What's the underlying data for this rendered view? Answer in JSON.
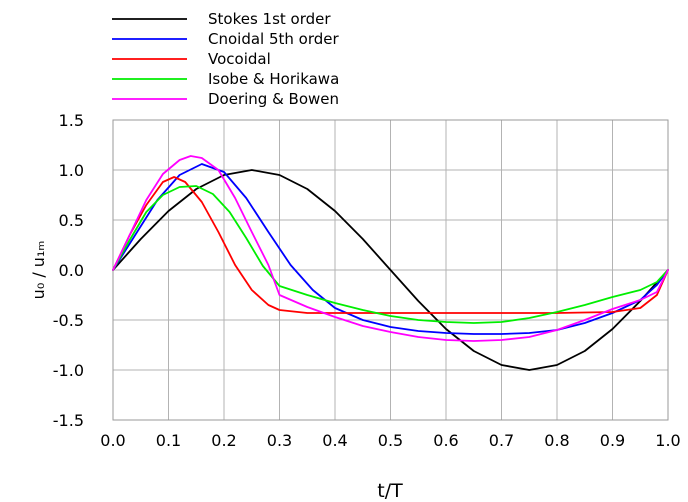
{
  "chart_data": {
    "type": "line",
    "title": "",
    "xlabel": "t/T",
    "ylabel": "u₀ / u₁ₘ",
    "xlim": [
      0.0,
      1.0
    ],
    "ylim": [
      -1.5,
      1.5
    ],
    "x_ticks": [
      "0.0",
      "0.1",
      "0.2",
      "0.3",
      "0.4",
      "0.5",
      "0.6",
      "0.7",
      "0.8",
      "0.9",
      "1.0"
    ],
    "y_ticks": [
      "1.5",
      "1.0",
      "0.5",
      "0.0",
      "-0.5",
      "-1.0",
      "-1.5"
    ],
    "grid": true,
    "legend_position": "top-left-outside",
    "series": [
      {
        "name": "Stokes 1st order",
        "color": "#000000",
        "points": [
          [
            0.0,
            0.0
          ],
          [
            0.05,
            0.31
          ],
          [
            0.1,
            0.59
          ],
          [
            0.15,
            0.81
          ],
          [
            0.2,
            0.95
          ],
          [
            0.25,
            1.0
          ],
          [
            0.3,
            0.95
          ],
          [
            0.35,
            0.81
          ],
          [
            0.4,
            0.59
          ],
          [
            0.45,
            0.31
          ],
          [
            0.5,
            0.0
          ],
          [
            0.55,
            -0.31
          ],
          [
            0.6,
            -0.59
          ],
          [
            0.65,
            -0.81
          ],
          [
            0.7,
            -0.95
          ],
          [
            0.75,
            -1.0
          ],
          [
            0.8,
            -0.95
          ],
          [
            0.85,
            -0.81
          ],
          [
            0.9,
            -0.59
          ],
          [
            0.95,
            -0.31
          ],
          [
            1.0,
            0.0
          ]
        ]
      },
      {
        "name": "Cnoidal 5th order",
        "color": "#0000ff",
        "points": [
          [
            0.0,
            0.0
          ],
          [
            0.04,
            0.35
          ],
          [
            0.08,
            0.7
          ],
          [
            0.12,
            0.95
          ],
          [
            0.16,
            1.06
          ],
          [
            0.2,
            0.98
          ],
          [
            0.24,
            0.72
          ],
          [
            0.28,
            0.38
          ],
          [
            0.32,
            0.05
          ],
          [
            0.36,
            -0.2
          ],
          [
            0.4,
            -0.38
          ],
          [
            0.45,
            -0.5
          ],
          [
            0.5,
            -0.57
          ],
          [
            0.55,
            -0.61
          ],
          [
            0.6,
            -0.63
          ],
          [
            0.65,
            -0.64
          ],
          [
            0.7,
            -0.64
          ],
          [
            0.75,
            -0.63
          ],
          [
            0.8,
            -0.6
          ],
          [
            0.85,
            -0.53
          ],
          [
            0.9,
            -0.43
          ],
          [
            0.95,
            -0.3
          ],
          [
            0.98,
            -0.15
          ],
          [
            1.0,
            0.0
          ]
        ]
      },
      {
        "name": "Vocoidal",
        "color": "#ff0000",
        "points": [
          [
            0.0,
            0.0
          ],
          [
            0.03,
            0.35
          ],
          [
            0.06,
            0.65
          ],
          [
            0.09,
            0.88
          ],
          [
            0.11,
            0.93
          ],
          [
            0.13,
            0.88
          ],
          [
            0.16,
            0.68
          ],
          [
            0.19,
            0.38
          ],
          [
            0.22,
            0.05
          ],
          [
            0.25,
            -0.2
          ],
          [
            0.28,
            -0.35
          ],
          [
            0.3,
            -0.4
          ],
          [
            0.35,
            -0.43
          ],
          [
            0.4,
            -0.43
          ],
          [
            0.5,
            -0.43
          ],
          [
            0.6,
            -0.43
          ],
          [
            0.7,
            -0.43
          ],
          [
            0.8,
            -0.43
          ],
          [
            0.9,
            -0.42
          ],
          [
            0.95,
            -0.38
          ],
          [
            0.98,
            -0.25
          ],
          [
            1.0,
            0.0
          ]
        ]
      },
      {
        "name": "Isobe & Horikawa",
        "color": "#00ee00",
        "points": [
          [
            0.0,
            0.0
          ],
          [
            0.03,
            0.3
          ],
          [
            0.06,
            0.58
          ],
          [
            0.09,
            0.75
          ],
          [
            0.12,
            0.83
          ],
          [
            0.15,
            0.84
          ],
          [
            0.18,
            0.76
          ],
          [
            0.21,
            0.58
          ],
          [
            0.24,
            0.32
          ],
          [
            0.27,
            0.04
          ],
          [
            0.3,
            -0.16
          ],
          [
            0.35,
            -0.25
          ],
          [
            0.4,
            -0.33
          ],
          [
            0.45,
            -0.4
          ],
          [
            0.5,
            -0.46
          ],
          [
            0.55,
            -0.5
          ],
          [
            0.6,
            -0.52
          ],
          [
            0.65,
            -0.53
          ],
          [
            0.7,
            -0.52
          ],
          [
            0.75,
            -0.48
          ],
          [
            0.8,
            -0.42
          ],
          [
            0.85,
            -0.35
          ],
          [
            0.9,
            -0.27
          ],
          [
            0.95,
            -0.2
          ],
          [
            0.98,
            -0.12
          ],
          [
            1.0,
            0.0
          ]
        ]
      },
      {
        "name": "Doering & Bowen",
        "color": "#ff00ff",
        "points": [
          [
            0.0,
            0.0
          ],
          [
            0.03,
            0.35
          ],
          [
            0.06,
            0.7
          ],
          [
            0.09,
            0.96
          ],
          [
            0.12,
            1.1
          ],
          [
            0.14,
            1.14
          ],
          [
            0.16,
            1.12
          ],
          [
            0.19,
            1.0
          ],
          [
            0.22,
            0.72
          ],
          [
            0.25,
            0.38
          ],
          [
            0.28,
            0.05
          ],
          [
            0.3,
            -0.25
          ],
          [
            0.35,
            -0.37
          ],
          [
            0.4,
            -0.47
          ],
          [
            0.45,
            -0.56
          ],
          [
            0.5,
            -0.62
          ],
          [
            0.55,
            -0.67
          ],
          [
            0.6,
            -0.7
          ],
          [
            0.65,
            -0.71
          ],
          [
            0.7,
            -0.7
          ],
          [
            0.75,
            -0.67
          ],
          [
            0.8,
            -0.6
          ],
          [
            0.85,
            -0.5
          ],
          [
            0.9,
            -0.39
          ],
          [
            0.95,
            -0.3
          ],
          [
            0.98,
            -0.22
          ],
          [
            1.0,
            0.0
          ]
        ]
      }
    ]
  }
}
